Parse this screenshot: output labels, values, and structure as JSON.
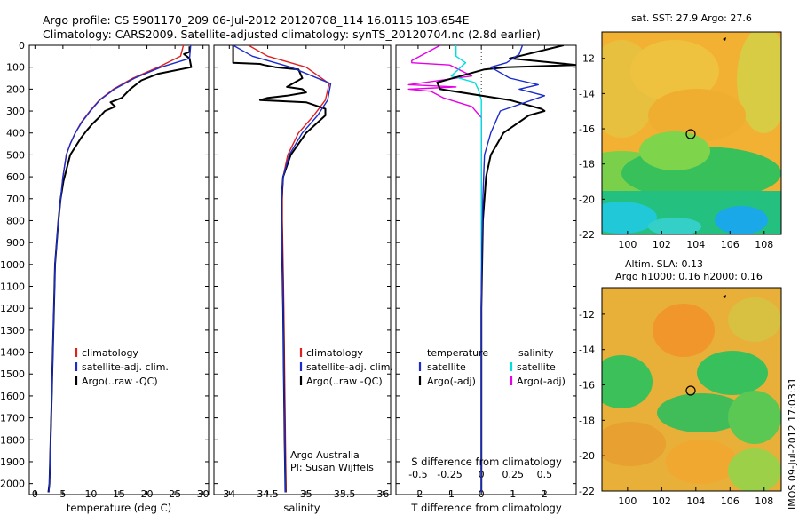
{
  "figure": {
    "title_line1": "Argo profile: CS 5901170_209 06-Jul-2012 20120708_114 16.011S 103.654E",
    "title_line2": "Climatology: CARS2009. Satellite-adjusted climatology: synTS_20120704.nc (2.8d earlier)",
    "timestamp": "IMOS 09-Jul-2012 17:03:31",
    "colors": {
      "climatology": "#e02020",
      "satellite": "#1a2ccc",
      "argo": "#000000",
      "cyan": "#00dede",
      "magenta": "#e600e6"
    }
  },
  "legends": {
    "temperature_panel": [
      "climatology",
      "satellite-adj. clim.",
      "Argo(..raw -QC)"
    ],
    "salinity_panel": [
      "climatology",
      "satellite-adj. clim.",
      "Argo(..raw -QC)"
    ],
    "diff_panel": {
      "temp_header": "temperature",
      "sal_header": "salinity",
      "temp_items": [
        "satellite",
        "Argo(-adj)"
      ],
      "sal_items": [
        "satellite",
        "Argo(-adj)"
      ]
    }
  },
  "salinity_annotation": [
    "Argo Australia",
    "PI: Susan Wijffels"
  ],
  "maps": {
    "top_title": "sat. SST: 27.9 Argo: 27.6",
    "bottom_title_line1": "Altim. SLA: 0.13",
    "bottom_title_line2": "Argo h1000: 0.16 h2000: 0.16",
    "y_ticks": [
      "-12",
      "-14",
      "-16",
      "-18",
      "-20",
      "-22"
    ],
    "x_ticks": [
      "100",
      "102",
      "104",
      "106",
      "108"
    ]
  },
  "chart_data": [
    {
      "type": "line",
      "title": "",
      "xlabel": "temperature (deg C)",
      "ylabel": "",
      "xlim": [
        -1,
        31
      ],
      "ylim": [
        2050,
        0
      ],
      "xticks": [
        0,
        5,
        10,
        15,
        20,
        25,
        30
      ],
      "yticks": [
        0,
        100,
        200,
        300,
        400,
        500,
        600,
        700,
        800,
        900,
        1000,
        1100,
        1200,
        1300,
        1400,
        1500,
        1600,
        1700,
        1800,
        1900,
        2000
      ],
      "series": [
        {
          "name": "climatology",
          "color": "#e02020",
          "x": [
            26.5,
            26.0,
            22.0,
            17.5,
            14.0,
            11.5,
            9.8,
            8.3,
            7.2,
            6.3,
            5.6,
            5.0,
            4.6,
            4.2,
            3.9,
            3.6,
            3.4,
            3.2,
            3.0,
            2.8,
            2.6,
            2.5
          ],
          "y": [
            0,
            50,
            100,
            150,
            200,
            250,
            300,
            350,
            400,
            450,
            500,
            600,
            700,
            800,
            900,
            1000,
            1200,
            1400,
            1600,
            1800,
            2000,
            2040
          ]
        },
        {
          "name": "satellite-adj. clim.",
          "color": "#1a2ccc",
          "x": [
            27.8,
            27.6,
            22.5,
            17.8,
            14.2,
            11.6,
            9.9,
            8.4,
            7.2,
            6.3,
            5.6,
            5.0,
            4.6,
            4.2,
            3.9,
            3.6,
            3.4,
            3.2,
            3.0,
            2.8,
            2.6,
            2.5
          ],
          "y": [
            0,
            60,
            100,
            150,
            200,
            250,
            300,
            350,
            400,
            450,
            500,
            600,
            700,
            800,
            900,
            1000,
            1200,
            1400,
            1600,
            1800,
            2000,
            2040
          ]
        },
        {
          "name": "Argo(..raw -QC)",
          "color": "#000000",
          "x": [
            27.6,
            27.6,
            26.6,
            27.6,
            27.9,
            22.0,
            19.0,
            17.0,
            15.5,
            13.5,
            14.3,
            12.5,
            11.4,
            10.2,
            9.2,
            8.3,
            7.3,
            6.3,
            5.7,
            5.1,
            4.6,
            4.2,
            3.9,
            3.6,
            3.4,
            3.2,
            3.0,
            2.8,
            2.6,
            2.4
          ],
          "y": [
            5,
            30,
            40,
            60,
            100,
            130,
            160,
            200,
            240,
            260,
            280,
            300,
            330,
            360,
            390,
            420,
            460,
            500,
            560,
            620,
            700,
            800,
            900,
            1000,
            1200,
            1400,
            1600,
            1800,
            2000,
            2040
          ]
        }
      ]
    },
    {
      "type": "line",
      "title": "",
      "xlabel": "salinity",
      "ylabel": "",
      "xlim": [
        33.8,
        36.1
      ],
      "ylim": [
        2050,
        0
      ],
      "xticks": [
        34,
        34.5,
        35,
        35.5,
        36
      ],
      "series": [
        {
          "name": "climatology",
          "color": "#e02020",
          "x": [
            34.25,
            34.5,
            35.0,
            35.3,
            35.25,
            35.1,
            34.9,
            34.76,
            34.7,
            34.69,
            34.69,
            34.7,
            34.71,
            34.72,
            34.73,
            34.74
          ],
          "y": [
            0,
            50,
            100,
            175,
            250,
            320,
            400,
            500,
            600,
            700,
            800,
            1000,
            1200,
            1500,
            1800,
            2040
          ]
        },
        {
          "name": "satellite-adj. clim.",
          "color": "#1a2ccc",
          "x": [
            34.05,
            34.3,
            34.8,
            35.32,
            35.28,
            35.15,
            34.95,
            34.78,
            34.7,
            34.68,
            34.68,
            34.69,
            34.7,
            34.71,
            34.72,
            34.73
          ],
          "y": [
            0,
            50,
            100,
            175,
            250,
            320,
            400,
            500,
            600,
            700,
            800,
            1000,
            1200,
            1500,
            1800,
            2040
          ]
        },
        {
          "name": "Argo(..raw -QC)",
          "color": "#000000",
          "x": [
            34.05,
            34.05,
            34.4,
            34.45,
            34.6,
            34.9,
            34.95,
            34.75,
            34.95,
            35.0,
            34.75,
            34.5,
            34.4,
            35.0,
            35.25,
            35.25,
            35.0,
            34.8,
            34.7,
            34.68,
            34.68,
            34.69,
            34.7,
            34.71,
            34.72,
            34.73
          ],
          "y": [
            0,
            80,
            85,
            90,
            100,
            110,
            150,
            190,
            200,
            215,
            230,
            240,
            250,
            260,
            290,
            320,
            400,
            500,
            600,
            700,
            800,
            1000,
            1200,
            1500,
            1800,
            2040
          ]
        }
      ]
    },
    {
      "type": "line",
      "title": "",
      "xlabel": "T difference from climatology",
      "xlabel_top": "S difference from climatology",
      "ylabel": "",
      "xlim": [
        -2.7,
        3
      ],
      "ylim": [
        2050,
        0
      ],
      "xticks": [
        -2,
        -1,
        0,
        1,
        2
      ],
      "xticks_top": [
        "-0.5",
        "-0.25",
        "0",
        "0.25",
        "0.5"
      ],
      "series": [
        {
          "name": "satellite",
          "group": "temperature",
          "color": "#1a2ccc",
          "x": [
            1.3,
            1.2,
            0.8,
            0.3,
            0.9,
            1.8,
            1.2,
            2.0,
            0.6,
            0.3,
            0.1,
            0.05,
            0.02,
            0.0,
            0.0,
            0.0
          ],
          "y": [
            0,
            40,
            80,
            100,
            150,
            180,
            200,
            230,
            300,
            400,
            500,
            700,
            900,
            1200,
            1600,
            2040
          ]
        },
        {
          "name": "Argo(-adj)",
          "group": "temperature",
          "color": "#000000",
          "x": [
            2.6,
            0.9,
            3.0,
            0.8,
            0.1,
            -1.4,
            -1.3,
            0.9,
            1.9,
            2.0,
            1.5,
            1.2,
            0.7,
            0.5,
            0.3,
            0.15,
            0.05,
            0.0,
            0.0
          ],
          "y": [
            0,
            60,
            90,
            100,
            110,
            170,
            200,
            250,
            290,
            300,
            320,
            350,
            400,
            450,
            500,
            600,
            800,
            1200,
            2040
          ]
        },
        {
          "name": "satellite",
          "group": "salinity",
          "color": "#00dede",
          "x": [
            -0.8,
            -0.8,
            -0.5,
            -0.95,
            -0.2,
            -0.1,
            0.0,
            0.0,
            0.0,
            0.0,
            0.0,
            0.0,
            0.0
          ],
          "y": [
            0,
            50,
            80,
            140,
            170,
            200,
            250,
            330,
            400,
            600,
            900,
            1400,
            2040
          ]
        },
        {
          "name": "Argo(-adj)",
          "group": "salinity",
          "color": "#e600e6",
          "x": [
            -1.3,
            -2.2,
            -2.2,
            -1.0,
            -0.3,
            -2.3,
            -0.8,
            -2.3,
            -1.6,
            -1.2,
            -0.3,
            0.0,
            0.0,
            0.0,
            0.0
          ],
          "y": [
            0,
            70,
            80,
            90,
            140,
            180,
            190,
            200,
            210,
            240,
            280,
            330,
            500,
            1000,
            2040
          ]
        }
      ]
    }
  ]
}
